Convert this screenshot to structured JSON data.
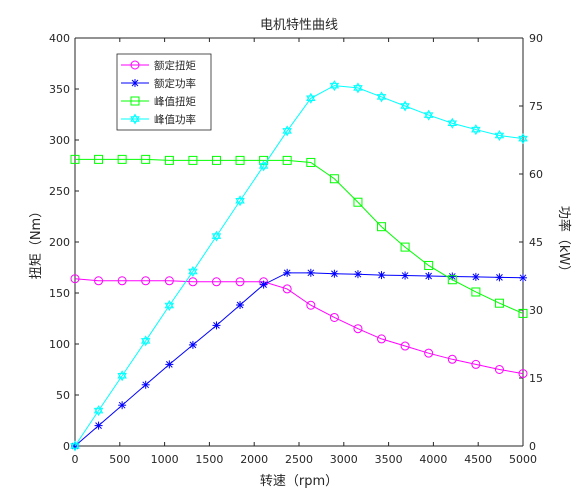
{
  "chart_data": {
    "type": "line",
    "title": "电机特性曲线",
    "xlabel": "转速（rpm）",
    "ylabel_left": "扭矩（Nm）",
    "ylabel_right": "功率（kW）",
    "xlim": [
      0,
      5000
    ],
    "ylim_left": [
      0,
      400
    ],
    "ylim_right": [
      0,
      90
    ],
    "x_ticks": [
      "0",
      "500",
      "1000",
      "1500",
      "2000",
      "2500",
      "3000",
      "3500",
      "4000",
      "4500",
      "5000"
    ],
    "y_left_ticks": [
      "0",
      "50",
      "100",
      "150",
      "200",
      "250",
      "300",
      "350",
      "400"
    ],
    "y_right_ticks": [
      "0",
      "15",
      "30",
      "45",
      "60",
      "75",
      "90"
    ],
    "grid": false,
    "legend_position": "top-left",
    "x": [
      0,
      263,
      526,
      789,
      1053,
      1316,
      1579,
      1842,
      2105,
      2368,
      2632,
      2895,
      3158,
      3421,
      3684,
      3947,
      4211,
      4474,
      4737,
      5000
    ],
    "series": [
      {
        "name": "额定扭矩",
        "axis": "left",
        "color": "#ff00ff",
        "marker": "circle",
        "values": [
          164,
          162,
          162,
          162,
          162,
          161,
          161,
          161,
          161,
          154,
          138,
          126,
          115,
          105,
          98,
          91,
          85,
          80,
          75,
          71
        ]
      },
      {
        "name": "额定功率",
        "axis": "right",
        "color": "#0000ff",
        "marker": "asterisk",
        "values": [
          0,
          4.5,
          9,
          13.5,
          18,
          22.3,
          26.6,
          31.1,
          35.6,
          38.2,
          38.2,
          38.0,
          37.9,
          37.7,
          37.6,
          37.5,
          37.4,
          37.3,
          37.2,
          37.1
        ]
      },
      {
        "name": "峰值扭矩",
        "axis": "left",
        "color": "#00ff00",
        "marker": "square",
        "values": [
          281,
          281,
          281,
          281,
          280,
          280,
          280,
          280,
          280,
          280,
          278,
          262,
          239,
          215,
          195,
          177,
          163,
          151,
          140,
          130
        ]
      },
      {
        "name": "峰值功率",
        "axis": "right",
        "color": "#00ffff",
        "marker": "hexagram",
        "values": [
          0,
          7.8,
          15.5,
          23.2,
          31,
          38.5,
          46.3,
          54.1,
          61.8,
          69.5,
          76.7,
          79.5,
          79.0,
          77.0,
          75.0,
          73.0,
          71.2,
          69.8,
          68.5,
          67.8
        ]
      }
    ]
  }
}
